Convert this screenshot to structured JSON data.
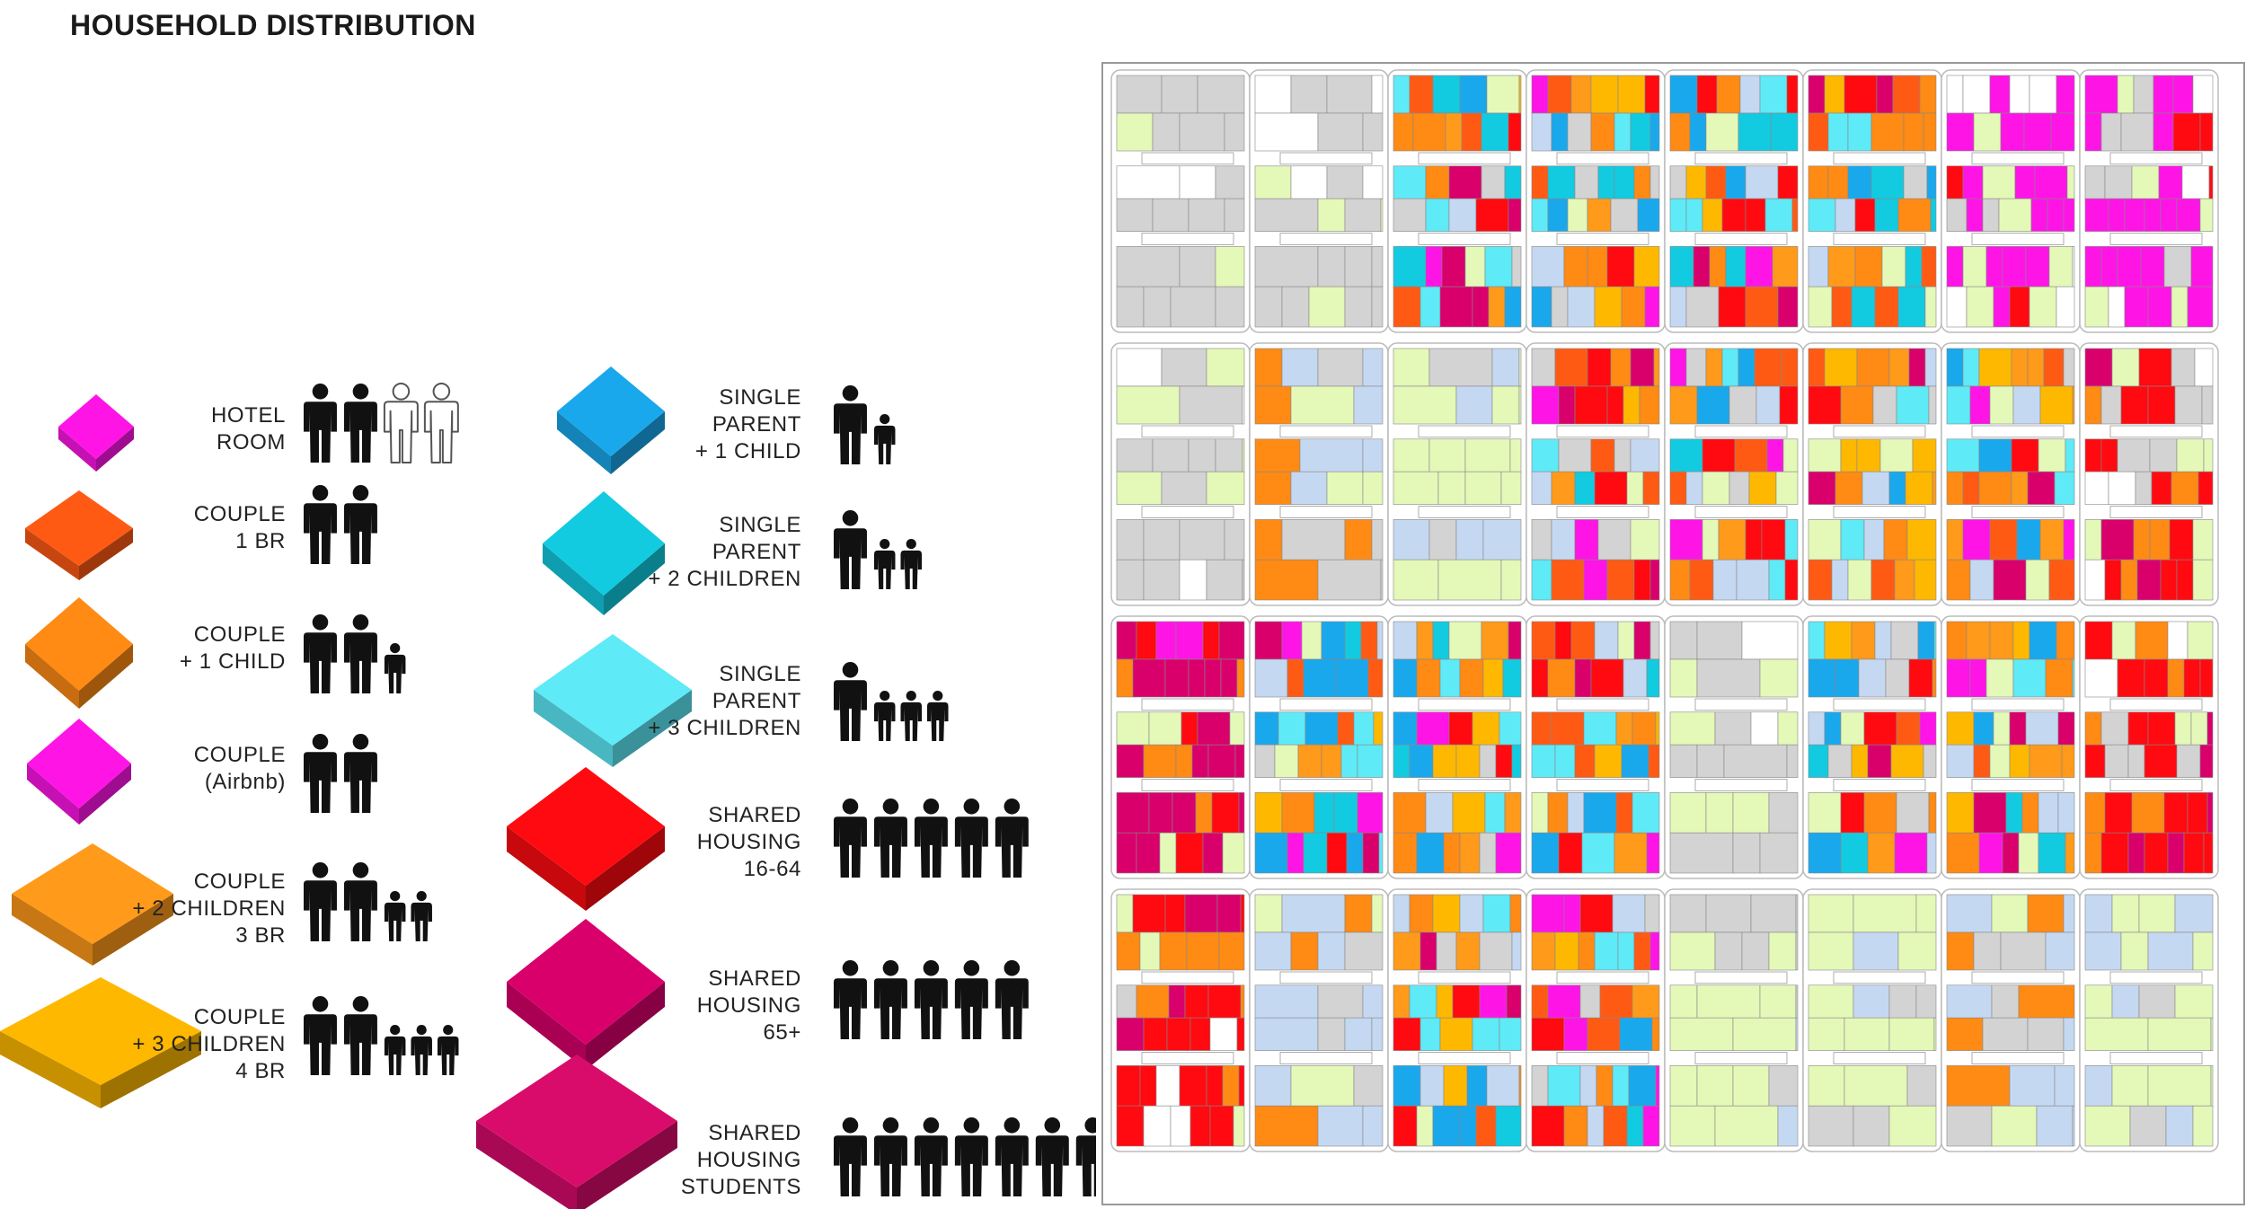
{
  "title": "HOUSEHOLD DISTRIBUTION",
  "colors": {
    "hotel": "#ff14e6",
    "couple_1br": "#ff5a14",
    "couple_1child": "#ff8a14",
    "couple_airbnb": "#ff14e6",
    "couple_2children": "#ff9a1a",
    "couple_3children": "#ffb800",
    "single_1child": "#1aa8ec",
    "single_2children": "#12cbe0",
    "single_3children": "#5eeaf7",
    "shared_16_64": "#ff0a10",
    "shared_65": "#d9006c",
    "shared_students": "#d90c6c",
    "vacant_grey": "#d3d3d3",
    "light_blue": "#c5d8f2",
    "light_green": "#e4f8b8"
  },
  "legend": [
    {
      "id": "hotel",
      "lines": [
        "HOTEL",
        "ROOM"
      ],
      "icon": "hotel-room-people-icon",
      "adults": 2,
      "outline_adults": 2,
      "children": 0
    },
    {
      "id": "couple_1br",
      "lines": [
        "COUPLE",
        "1 BR"
      ],
      "icon": "couple-people-icon",
      "adults": 2,
      "children": 0
    },
    {
      "id": "couple_1child",
      "lines": [
        "COUPLE",
        "+ 1 CHILD"
      ],
      "icon": "couple-one-child-people-icon",
      "adults": 2,
      "children": 1
    },
    {
      "id": "couple_airbnb",
      "lines": [
        "COUPLE",
        "(Airbnb)"
      ],
      "icon": "couple-airbnb-people-icon",
      "adults": 2,
      "children": 0
    },
    {
      "id": "couple_2children",
      "lines": [
        "COUPLE",
        "+ 2 CHILDREN",
        "3 BR"
      ],
      "icon": "couple-two-children-people-icon",
      "adults": 2,
      "children": 2
    },
    {
      "id": "couple_3children",
      "lines": [
        "COUPLE",
        "+ 3 CHILDREN",
        "4 BR"
      ],
      "icon": "couple-three-children-people-icon",
      "adults": 2,
      "children": 3
    },
    {
      "id": "single_1child",
      "lines": [
        "SINGLE",
        "PARENT",
        "+ 1 CHILD"
      ],
      "icon": "single-parent-one-child-people-icon",
      "adults": 1,
      "children": 1
    },
    {
      "id": "single_2children",
      "lines": [
        "SINGLE",
        "PARENT",
        "+ 2 CHILDREN"
      ],
      "icon": "single-parent-two-children-people-icon",
      "adults": 1,
      "children": 2
    },
    {
      "id": "single_3children",
      "lines": [
        "SINGLE",
        "PARENT",
        "+ 3 CHILDREN"
      ],
      "icon": "single-parent-three-children-people-icon",
      "adults": 1,
      "children": 3
    },
    {
      "id": "shared_16_64",
      "lines": [
        "SHARED",
        "HOUSING",
        "16-64"
      ],
      "icon": "shared-housing-adults-people-icon",
      "adults": 5,
      "children": 0
    },
    {
      "id": "shared_65",
      "lines": [
        "SHARED",
        "HOUSING",
        "65+"
      ],
      "icon": "shared-housing-seniors-people-icon",
      "adults": 5,
      "children": 0
    },
    {
      "id": "shared_students",
      "lines": [
        "SHARED",
        "HOUSING",
        "STUDENTS"
      ],
      "icon": "shared-housing-students-people-icon",
      "adults": 7,
      "children": 0
    }
  ],
  "plan": {
    "rows": 4,
    "cols": 8,
    "block_fill": {
      "r1": [
        "grey",
        "grey",
        "mixed",
        "mixed",
        "mixed",
        "mixed",
        "magenta",
        "magenta"
      ],
      "r2": [
        "grey",
        "blue",
        "green",
        "mixed",
        "mixed",
        "mixed",
        "mixed",
        "red"
      ],
      "r3": [
        "shared",
        "mixed",
        "mixed",
        "mixed",
        "grey",
        "mixed",
        "mixed",
        "red"
      ],
      "r4": [
        "red",
        "blue",
        "mixed",
        "mixed",
        "green",
        "green",
        "blue",
        "green"
      ]
    }
  }
}
